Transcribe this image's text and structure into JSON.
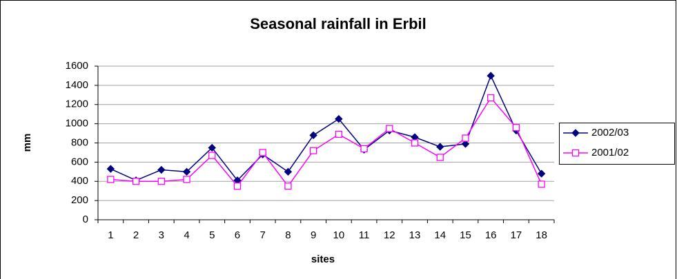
{
  "chart_data": {
    "type": "line",
    "title": "Seasonal rainfall in Erbil",
    "x_label": "sites",
    "y_label": "mm",
    "categories": [
      "1",
      "2",
      "3",
      "4",
      "5",
      "6",
      "7",
      "8",
      "9",
      "10",
      "11",
      "12",
      "13",
      "14",
      "15",
      "16",
      "17",
      "18"
    ],
    "series": [
      {
        "name": "2002/03",
        "color": "#000080",
        "marker": "diamond",
        "values": [
          530,
          410,
          520,
          500,
          750,
          410,
          680,
          500,
          880,
          1050,
          730,
          930,
          860,
          760,
          790,
          1500,
          930,
          480
        ]
      },
      {
        "name": "2001/02",
        "color": "#ff00ff",
        "marker": "square",
        "values": [
          420,
          400,
          400,
          420,
          670,
          350,
          700,
          350,
          720,
          890,
          740,
          950,
          800,
          650,
          850,
          1270,
          960,
          370
        ]
      }
    ],
    "ylim": [
      0,
      1600
    ],
    "yticks": [
      0,
      200,
      400,
      600,
      800,
      1000,
      1200,
      1400,
      1600
    ],
    "grid": true,
    "legend": "right"
  }
}
